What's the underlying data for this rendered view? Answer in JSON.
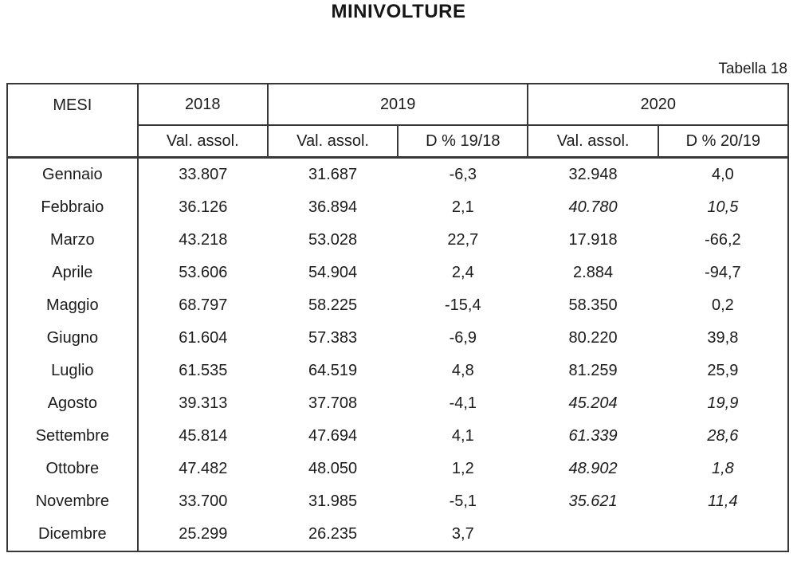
{
  "title": "MINIVOLTURE",
  "table_label": "Tabella 18",
  "colors": {
    "background": "#ffffff",
    "text": "#1c1c1c",
    "border": "#383838"
  },
  "table": {
    "header": {
      "mesi": "MESI",
      "y2018": "2018",
      "y2019": "2019",
      "y2020": "2020"
    },
    "sub_headers": [
      "Val. assol.",
      "Val. assol.",
      "D % 19/18",
      "Val. assol.",
      "D % 20/19"
    ],
    "rows": [
      {
        "month": "Gennaio",
        "v2018": "33.807",
        "v2019": "31.687",
        "d_19_18": "-6,3",
        "v2020": "32.948",
        "d_20_19": "4,0",
        "italic": false
      },
      {
        "month": "Febbraio",
        "v2018": "36.126",
        "v2019": "36.894",
        "d_19_18": "2,1",
        "v2020": "40.780",
        "d_20_19": "10,5",
        "italic": true
      },
      {
        "month": "Marzo",
        "v2018": "43.218",
        "v2019": "53.028",
        "d_19_18": "22,7",
        "v2020": "17.918",
        "d_20_19": "-66,2",
        "italic": false
      },
      {
        "month": "Aprile",
        "v2018": "53.606",
        "v2019": "54.904",
        "d_19_18": "2,4",
        "v2020": "2.884",
        "d_20_19": "-94,7",
        "italic": false
      },
      {
        "month": "Maggio",
        "v2018": "68.797",
        "v2019": "58.225",
        "d_19_18": "-15,4",
        "v2020": "58.350",
        "d_20_19": "0,2",
        "italic": false
      },
      {
        "month": "Giugno",
        "v2018": "61.604",
        "v2019": "57.383",
        "d_19_18": "-6,9",
        "v2020": "80.220",
        "d_20_19": "39,8",
        "italic": false
      },
      {
        "month": "Luglio",
        "v2018": "61.535",
        "v2019": "64.519",
        "d_19_18": "4,8",
        "v2020": "81.259",
        "d_20_19": "25,9",
        "italic": false
      },
      {
        "month": "Agosto",
        "v2018": "39.313",
        "v2019": "37.708",
        "d_19_18": "-4,1",
        "v2020": "45.204",
        "d_20_19": "19,9",
        "italic": true
      },
      {
        "month": "Settembre",
        "v2018": "45.814",
        "v2019": "47.694",
        "d_19_18": "4,1",
        "v2020": "61.339",
        "d_20_19": "28,6",
        "italic": true
      },
      {
        "month": "Ottobre",
        "v2018": "47.482",
        "v2019": "48.050",
        "d_19_18": "1,2",
        "v2020": "48.902",
        "d_20_19": "1,8",
        "italic": true
      },
      {
        "month": "Novembre",
        "v2018": "33.700",
        "v2019": "31.985",
        "d_19_18": "-5,1",
        "v2020": "35.621",
        "d_20_19": "11,4",
        "italic": true
      },
      {
        "month": "Dicembre",
        "v2018": "25.299",
        "v2019": "26.235",
        "d_19_18": "3,7",
        "v2020": "",
        "d_20_19": "",
        "italic": false
      }
    ]
  }
}
